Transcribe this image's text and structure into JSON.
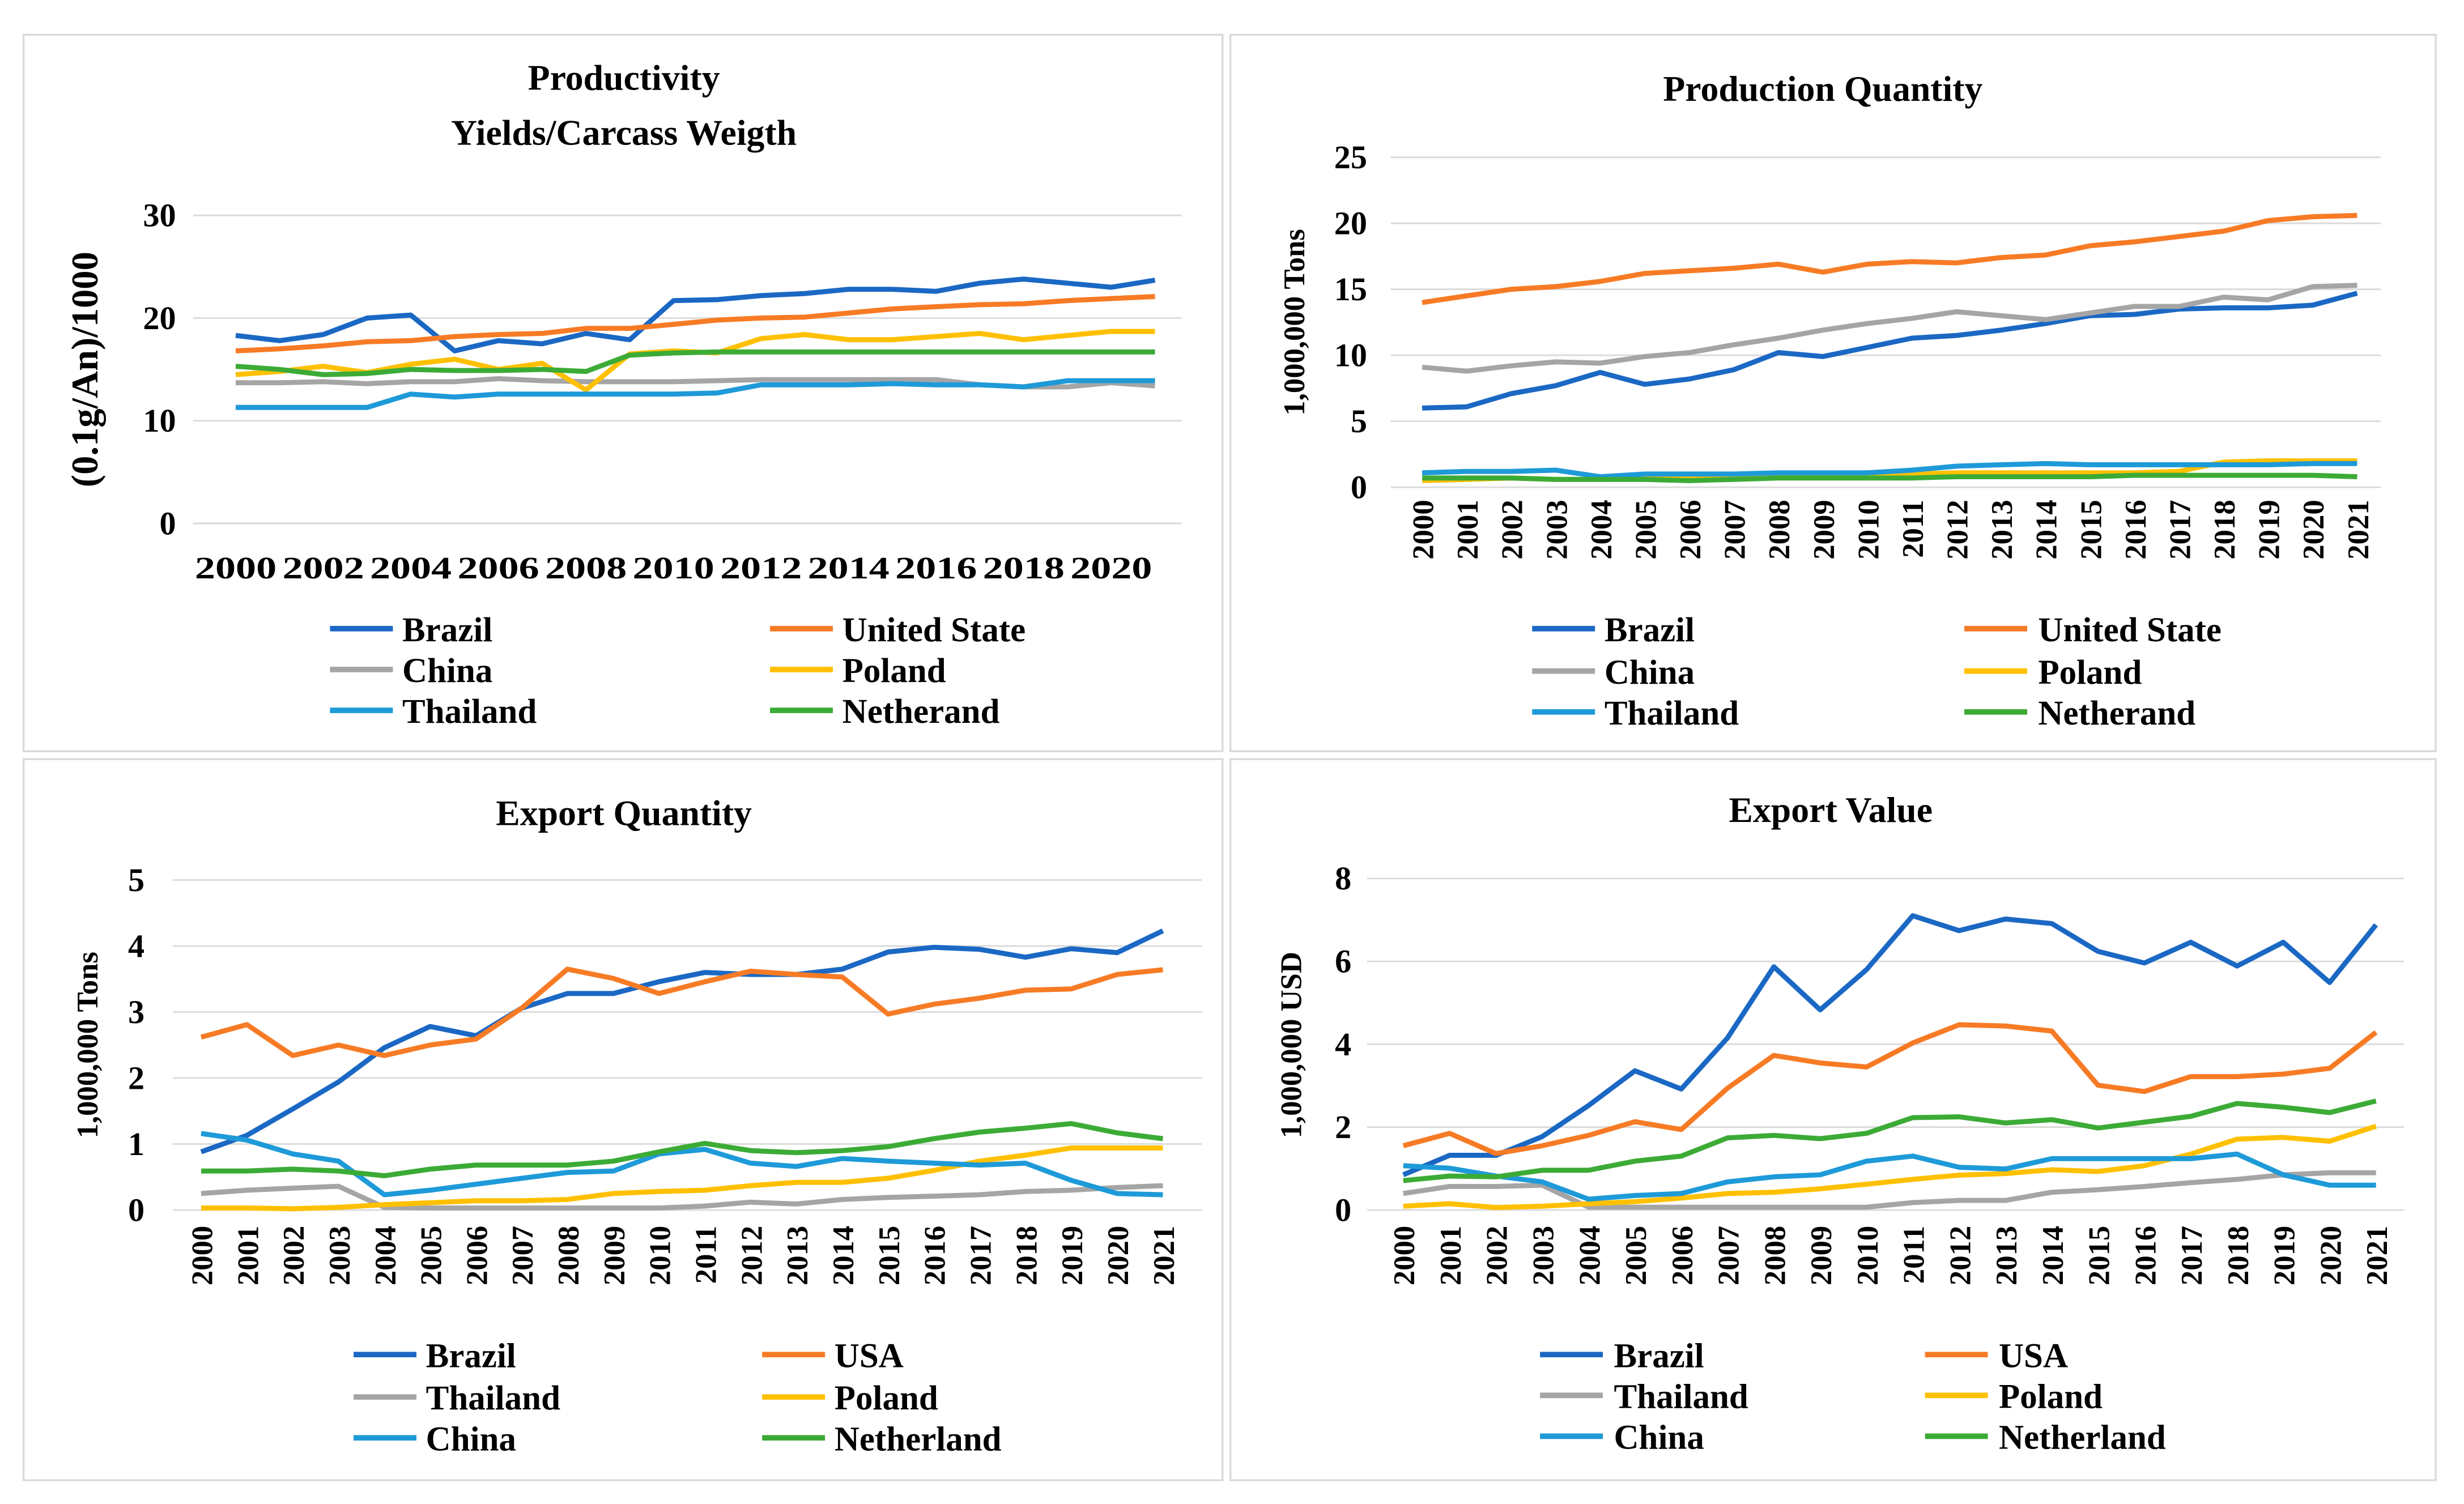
{
  "chart_data": [
    {
      "type": "line",
      "title": [
        "Productivity",
        "Yields/Carcass Weigth"
      ],
      "ylabel": "(0.1g/An)/1000",
      "xlabel": "",
      "ylim": [
        0,
        30
      ],
      "y_ticks": [
        "0",
        "10",
        "20",
        "30"
      ],
      "x": [
        2000,
        2001,
        2002,
        2003,
        2004,
        2005,
        2006,
        2007,
        2008,
        2009,
        2010,
        2011,
        2012,
        2013,
        2014,
        2015,
        2016,
        2017,
        2018,
        2019,
        2020,
        2021
      ],
      "x_tick_labels": [
        "2000",
        "2002",
        "2004",
        "2006",
        "2008",
        "2010",
        "2012",
        "2014",
        "2016",
        "2018",
        "2020"
      ],
      "grid": true,
      "legend_position": "bottom",
      "series": [
        {
          "name": "Brazil",
          "color": "#1b68c4",
          "values": [
            18.3,
            17.8,
            18.4,
            20.0,
            20.3,
            16.8,
            17.8,
            17.5,
            18.5,
            17.9,
            21.7,
            21.8,
            22.2,
            22.4,
            22.8,
            22.8,
            22.6,
            23.4,
            23.8,
            23.4,
            23.0,
            23.7
          ]
        },
        {
          "name": "United State",
          "color": "#f77b25",
          "values": [
            16.8,
            17.0,
            17.3,
            17.7,
            17.8,
            18.2,
            18.4,
            18.5,
            19.0,
            19.0,
            19.4,
            19.8,
            20.0,
            20.1,
            20.5,
            20.9,
            21.1,
            21.3,
            21.4,
            21.7,
            21.9,
            22.1
          ]
        },
        {
          "name": "China",
          "color": "#a5a5a5",
          "values": [
            13.7,
            13.7,
            13.8,
            13.6,
            13.8,
            13.8,
            14.1,
            13.9,
            13.8,
            13.8,
            13.8,
            13.9,
            14.0,
            14.0,
            14.0,
            14.0,
            14.0,
            13.5,
            13.3,
            13.3,
            13.7,
            13.4
          ]
        },
        {
          "name": "Poland",
          "color": "#ffc000",
          "values": [
            14.5,
            14.8,
            15.3,
            14.7,
            15.5,
            16.0,
            15.0,
            15.6,
            13.0,
            16.5,
            16.8,
            16.6,
            18.0,
            18.4,
            17.9,
            17.9,
            18.2,
            18.5,
            17.9,
            18.3,
            18.7,
            18.7
          ]
        },
        {
          "name": "Thailand",
          "color": "#1e9ad8",
          "values": [
            11.3,
            11.3,
            11.3,
            11.3,
            12.6,
            12.3,
            12.6,
            12.6,
            12.6,
            12.6,
            12.6,
            12.7,
            13.5,
            13.5,
            13.5,
            13.6,
            13.5,
            13.5,
            13.3,
            13.9,
            13.9,
            13.9
          ]
        },
        {
          "name": "Netherand",
          "color": "#3cab36",
          "values": [
            15.3,
            15.0,
            14.5,
            14.6,
            15.0,
            14.9,
            14.9,
            15.0,
            14.8,
            16.4,
            16.6,
            16.7,
            16.7,
            16.7,
            16.7,
            16.7,
            16.7,
            16.7,
            16.7,
            16.7,
            16.7,
            16.7
          ]
        }
      ]
    },
    {
      "type": "line",
      "title": [
        "Production Quantity"
      ],
      "ylabel": "1,000,000 Tons",
      "xlabel": "",
      "ylim": [
        0,
        25
      ],
      "y_ticks": [
        "0",
        "5",
        "10",
        "15",
        "20",
        "25"
      ],
      "x": [
        2000,
        2001,
        2002,
        2003,
        2004,
        2005,
        2006,
        2007,
        2008,
        2009,
        2010,
        2011,
        2012,
        2013,
        2014,
        2015,
        2016,
        2017,
        2018,
        2019,
        2020,
        2021
      ],
      "x_tick_labels": [
        "2000",
        "2001",
        "2002",
        "2003",
        "2004",
        "2005",
        "2006",
        "2007",
        "2008",
        "2009",
        "2010",
        "2011",
        "2012",
        "2013",
        "2014",
        "2015",
        "2016",
        "2017",
        "2018",
        "2019",
        "2020",
        "2021"
      ],
      "grid": true,
      "legend_position": "bottom",
      "series": [
        {
          "name": "Brazil",
          "color": "#1b68c4",
          "values": [
            6.0,
            6.1,
            7.1,
            7.7,
            8.7,
            7.8,
            8.2,
            8.9,
            10.2,
            9.9,
            10.6,
            11.3,
            11.5,
            11.9,
            12.4,
            13.0,
            13.1,
            13.5,
            13.6,
            13.6,
            13.8,
            14.7
          ]
        },
        {
          "name": "United State",
          "color": "#f77b25",
          "values": [
            14.0,
            14.5,
            15.0,
            15.2,
            15.6,
            16.2,
            16.4,
            16.6,
            16.9,
            16.3,
            16.9,
            17.1,
            17.0,
            17.4,
            17.6,
            18.3,
            18.6,
            19.0,
            19.4,
            20.2,
            20.5,
            20.6
          ]
        },
        {
          "name": "China",
          "color": "#a5a5a5",
          "values": [
            9.1,
            8.8,
            9.2,
            9.5,
            9.4,
            9.9,
            10.2,
            10.8,
            11.3,
            11.9,
            12.4,
            12.8,
            13.3,
            13.0,
            12.7,
            13.2,
            13.7,
            13.7,
            14.4,
            14.2,
            15.2,
            15.3
          ]
        },
        {
          "name": "Poland",
          "color": "#ffc000",
          "values": [
            0.5,
            0.6,
            0.7,
            0.6,
            0.6,
            0.7,
            0.7,
            0.7,
            0.8,
            0.8,
            0.9,
            1.0,
            1.1,
            1.1,
            1.1,
            1.1,
            1.1,
            1.2,
            1.9,
            2.0,
            2.0,
            2.0
          ]
        },
        {
          "name": "Thailand",
          "color": "#1e9ad8",
          "values": [
            1.1,
            1.2,
            1.2,
            1.3,
            0.8,
            1.0,
            1.0,
            1.0,
            1.1,
            1.1,
            1.1,
            1.3,
            1.6,
            1.7,
            1.8,
            1.7,
            1.7,
            1.7,
            1.7,
            1.7,
            1.8,
            1.8
          ]
        },
        {
          "name": "Netherand",
          "color": "#3cab36",
          "values": [
            0.7,
            0.7,
            0.7,
            0.6,
            0.6,
            0.6,
            0.5,
            0.6,
            0.7,
            0.7,
            0.7,
            0.7,
            0.8,
            0.8,
            0.8,
            0.8,
            0.9,
            0.9,
            0.9,
            0.9,
            0.9,
            0.8
          ]
        }
      ]
    },
    {
      "type": "line",
      "title": [
        "Export Quantity"
      ],
      "ylabel": "1,000,000 Tons",
      "xlabel": "",
      "ylim": [
        0,
        5
      ],
      "y_ticks": [
        "0",
        "1",
        "2",
        "3",
        "4",
        "5"
      ],
      "x": [
        2000,
        2001,
        2002,
        2003,
        2004,
        2005,
        2006,
        2007,
        2008,
        2009,
        2010,
        2011,
        2012,
        2013,
        2014,
        2015,
        2016,
        2017,
        2018,
        2019,
        2020,
        2021
      ],
      "x_tick_labels": [
        "2000",
        "2001",
        "2002",
        "2003",
        "2004",
        "2005",
        "2006",
        "2007",
        "2008",
        "2009",
        "2010",
        "2011",
        "2012",
        "2013",
        "2014",
        "2015",
        "2016",
        "2017",
        "2018",
        "2019",
        "2020",
        "2021"
      ],
      "grid": true,
      "legend_position": "bottom",
      "series": [
        {
          "name": "Brazil",
          "color": "#1b68c4",
          "values": [
            0.88,
            1.13,
            1.53,
            1.94,
            2.46,
            2.78,
            2.64,
            3.06,
            3.28,
            3.28,
            3.46,
            3.6,
            3.57,
            3.57,
            3.65,
            3.91,
            3.98,
            3.95,
            3.83,
            3.96,
            3.9,
            4.23
          ]
        },
        {
          "name": "USA",
          "color": "#f77b25",
          "values": [
            2.62,
            2.81,
            2.34,
            2.5,
            2.34,
            2.5,
            2.59,
            3.06,
            3.65,
            3.51,
            3.28,
            3.46,
            3.62,
            3.57,
            3.53,
            2.97,
            3.12,
            3.21,
            3.33,
            3.35,
            3.57,
            3.64
          ]
        },
        {
          "name": "Thailand",
          "color": "#a5a5a5",
          "values": [
            0.25,
            0.3,
            0.33,
            0.36,
            0.04,
            0.03,
            0.03,
            0.03,
            0.03,
            0.03,
            0.03,
            0.06,
            0.12,
            0.09,
            0.16,
            0.19,
            0.21,
            0.23,
            0.28,
            0.3,
            0.34,
            0.37
          ]
        },
        {
          "name": "Poland",
          "color": "#ffc000",
          "values": [
            0.03,
            0.03,
            0.02,
            0.04,
            0.08,
            0.11,
            0.14,
            0.14,
            0.16,
            0.25,
            0.28,
            0.3,
            0.37,
            0.42,
            0.42,
            0.48,
            0.6,
            0.74,
            0.83,
            0.94,
            0.94,
            0.94
          ]
        },
        {
          "name": "China",
          "color": "#1e9ad8",
          "values": [
            1.16,
            1.06,
            0.85,
            0.74,
            0.23,
            0.3,
            0.39,
            0.48,
            0.57,
            0.59,
            0.85,
            0.92,
            0.71,
            0.66,
            0.78,
            0.74,
            0.71,
            0.68,
            0.71,
            0.45,
            0.25,
            0.23
          ]
        },
        {
          "name": "Netherland",
          "color": "#3cab36",
          "values": [
            0.59,
            0.59,
            0.62,
            0.59,
            0.52,
            0.62,
            0.68,
            0.68,
            0.68,
            0.74,
            0.88,
            1.01,
            0.9,
            0.87,
            0.9,
            0.96,
            1.08,
            1.18,
            1.24,
            1.31,
            1.17,
            1.08
          ]
        }
      ]
    },
    {
      "type": "line",
      "title": [
        "Export Value"
      ],
      "ylabel": "1,000,000 USD",
      "xlabel": "",
      "ylim": [
        0,
        8
      ],
      "y_ticks": [
        "0",
        "2",
        "4",
        "6",
        "8"
      ],
      "x": [
        2000,
        2001,
        2002,
        2003,
        2004,
        2005,
        2006,
        2007,
        2008,
        2009,
        2010,
        2011,
        2012,
        2013,
        2014,
        2015,
        2016,
        2017,
        2018,
        2019,
        2020,
        2021
      ],
      "x_tick_labels": [
        "2000",
        "2001",
        "2002",
        "2003",
        "2004",
        "2005",
        "2006",
        "2007",
        "2008",
        "2009",
        "2010",
        "2011",
        "2012",
        "2013",
        "2014",
        "2015",
        "2016",
        "2017",
        "2018",
        "2019",
        "2020",
        "2021"
      ],
      "grid": true,
      "legend_position": "bottom",
      "series": [
        {
          "name": "Brazil",
          "color": "#1b68c4",
          "values": [
            0.85,
            1.32,
            1.32,
            1.77,
            2.52,
            3.36,
            2.92,
            4.15,
            5.87,
            4.83,
            5.8,
            7.1,
            6.74,
            7.02,
            6.91,
            6.24,
            5.96,
            6.46,
            5.89,
            6.46,
            5.49,
            6.88
          ]
        },
        {
          "name": "USA",
          "color": "#f77b25",
          "values": [
            1.55,
            1.85,
            1.36,
            1.55,
            1.8,
            2.13,
            1.94,
            2.94,
            3.73,
            3.55,
            3.45,
            4.03,
            4.47,
            4.44,
            4.32,
            3.01,
            2.86,
            3.22,
            3.22,
            3.28,
            3.42,
            4.29
          ]
        },
        {
          "name": "Thailand",
          "color": "#a5a5a5",
          "values": [
            0.4,
            0.57,
            0.57,
            0.6,
            0.07,
            0.07,
            0.07,
            0.07,
            0.07,
            0.07,
            0.07,
            0.18,
            0.23,
            0.23,
            0.43,
            0.49,
            0.57,
            0.66,
            0.74,
            0.85,
            0.9,
            0.9
          ]
        },
        {
          "name": "Poland",
          "color": "#ffc000",
          "values": [
            0.09,
            0.15,
            0.06,
            0.09,
            0.15,
            0.2,
            0.29,
            0.4,
            0.43,
            0.51,
            0.62,
            0.74,
            0.84,
            0.88,
            0.97,
            0.93,
            1.07,
            1.35,
            1.71,
            1.75,
            1.66,
            2.02
          ]
        },
        {
          "name": "China",
          "color": "#1e9ad8",
          "values": [
            1.07,
            1.01,
            0.82,
            0.68,
            0.26,
            0.35,
            0.4,
            0.68,
            0.8,
            0.85,
            1.18,
            1.3,
            1.03,
            0.99,
            1.24,
            1.24,
            1.24,
            1.24,
            1.35,
            0.85,
            0.6,
            0.6
          ]
        },
        {
          "name": "Netherland",
          "color": "#3cab36",
          "values": [
            0.71,
            0.82,
            0.8,
            0.96,
            0.96,
            1.18,
            1.3,
            1.74,
            1.8,
            1.72,
            1.85,
            2.23,
            2.25,
            2.1,
            2.18,
            1.98,
            2.12,
            2.26,
            2.57,
            2.48,
            2.35,
            2.63
          ]
        }
      ]
    }
  ]
}
